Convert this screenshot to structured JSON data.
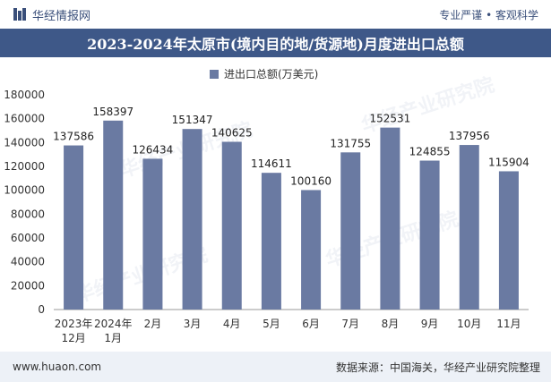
{
  "header": {
    "brand_name": "华经情报网",
    "tagline": "专业严谨 • 客观科学"
  },
  "watermark_text": "华经产业研究院",
  "footer": {
    "website": "www.huaon.com",
    "source": "数据来源：中国海关，华经产业研究院整理"
  },
  "colors": {
    "bar": "#6a7aa2",
    "title_bg": "#3e5888",
    "footer_bg": "#edf1f7"
  },
  "chart_data": {
    "type": "bar",
    "title": "2023-2024年太原市(境内目的地/货源地)月度进出口总额",
    "legend": "进出口总额(万美元)",
    "categories": [
      [
        "2023年",
        "12月"
      ],
      [
        "2024年",
        "1月"
      ],
      [
        "2月"
      ],
      [
        "3月"
      ],
      [
        "4月"
      ],
      [
        "5月"
      ],
      [
        "6月"
      ],
      [
        "7月"
      ],
      [
        "8月"
      ],
      [
        "9月"
      ],
      [
        "10月"
      ],
      [
        "11月"
      ]
    ],
    "series": [
      {
        "name": "进出口总额(万美元)",
        "values": [
          137586,
          158397,
          126434,
          151347,
          140625,
          114611,
          100160,
          131755,
          152531,
          124855,
          137956,
          115904
        ]
      }
    ],
    "ylim": [
      0,
      180000
    ],
    "yticks": [
      0,
      20000,
      40000,
      60000,
      80000,
      100000,
      120000,
      140000,
      160000,
      180000
    ],
    "grid": false,
    "legend_position": "top-center"
  }
}
